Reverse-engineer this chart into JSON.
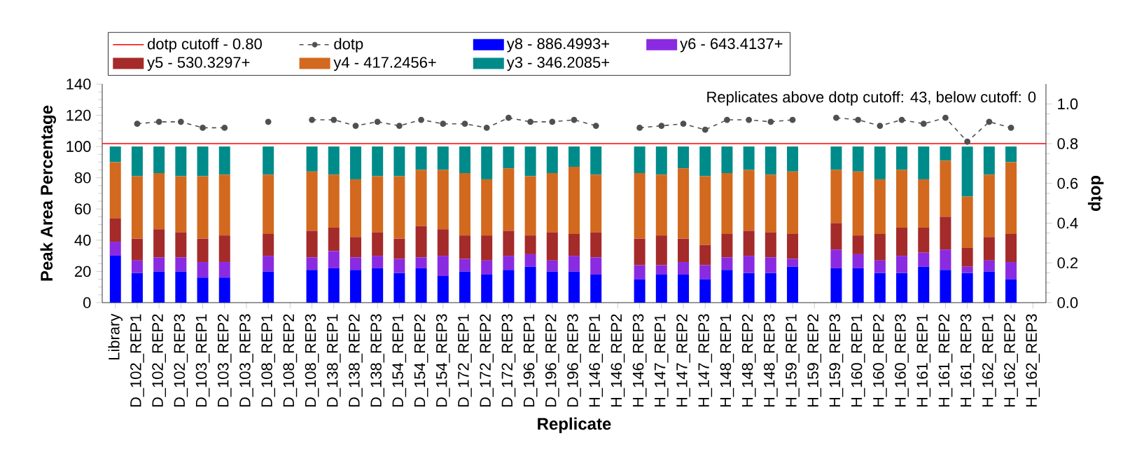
{
  "chart_data": {
    "type": "bar",
    "stacked": true,
    "categories": [
      "Library",
      "D_102_REP1",
      "D_102_REP2",
      "D_102_REP3",
      "D_103_REP1",
      "D_103_REP2",
      "D_103_REP3",
      "D_108_REP1",
      "D_108_REP2",
      "D_108_REP3",
      "D_138_REP1",
      "D_138_REP2",
      "D_138_REP3",
      "D_154_REP1",
      "D_154_REP2",
      "D_154_REP3",
      "D_172_REP1",
      "D_172_REP2",
      "D_172_REP3",
      "D_196_REP1",
      "D_196_REP2",
      "D_196_REP3",
      "H_146_REP1",
      "H_146_REP2",
      "H_146_REP3",
      "H_147_REP1",
      "H_147_REP2",
      "H_147_REP3",
      "H_148_REP1",
      "H_148_REP2",
      "H_148_REP3",
      "H_159_REP1",
      "H_159_REP2",
      "H_159_REP3",
      "H_160_REP1",
      "H_160_REP2",
      "H_160_REP3",
      "H_161_REP1",
      "H_161_REP2",
      "H_161_REP3",
      "H_162_REP1",
      "H_162_REP2",
      "H_162_REP3"
    ],
    "xlabel": "Replicate",
    "ylabel": "Peak Area Percentage",
    "y2label": "dotp",
    "ylim": [
      0,
      140
    ],
    "yticks": [
      0,
      20,
      40,
      60,
      80,
      100,
      120,
      140
    ],
    "y2lim": [
      0,
      1.1
    ],
    "y2ticks": [
      {
        "value": 0,
        "label": "0.0"
      },
      {
        "value": 0.2,
        "label": "0.2"
      },
      {
        "value": 0.4,
        "label": "0.4"
      },
      {
        "value": 0.6,
        "label": "0.6"
      },
      {
        "value": 0.8,
        "label": "0.8"
      },
      {
        "value": 1.0,
        "label": "1.0"
      }
    ],
    "series": [
      {
        "name": "y8 - 886.4993+",
        "color": "#0000ff",
        "values": [
          30,
          19,
          20,
          20,
          16,
          16,
          null,
          20,
          null,
          21,
          22,
          21,
          22,
          19,
          22,
          17,
          20,
          18,
          21,
          23,
          20,
          20,
          18,
          null,
          15,
          18,
          18,
          15,
          21,
          19,
          19,
          23,
          null,
          22,
          22,
          19,
          19,
          23,
          21,
          19,
          20,
          15,
          null
        ]
      },
      {
        "name": "y6 - 643.4137+",
        "color": "#8a2be2",
        "values": [
          9,
          8,
          9,
          9,
          10,
          10,
          null,
          10,
          null,
          8,
          11,
          8,
          8,
          9,
          7,
          13,
          8,
          9,
          9,
          8,
          7,
          10,
          11,
          null,
          9,
          6,
          8,
          9,
          8,
          11,
          10,
          5,
          null,
          12,
          9,
          8,
          11,
          9,
          13,
          4,
          7,
          11,
          null
        ]
      },
      {
        "name": "y5 - 530.3297+",
        "color": "#a52a2a",
        "values": [
          15,
          14,
          18,
          16,
          15,
          17,
          null,
          14,
          null,
          17,
          15,
          13,
          15,
          13,
          20,
          17,
          15,
          16,
          16,
          12,
          18,
          14,
          16,
          null,
          17,
          19,
          15,
          13,
          15,
          16,
          16,
          16,
          null,
          17,
          12,
          17,
          18,
          16,
          21,
          12,
          15,
          18,
          null
        ]
      },
      {
        "name": "y4 - 417.2456+",
        "color": "#d2691e",
        "values": [
          36,
          40,
          36,
          36,
          40,
          39,
          null,
          38,
          null,
          38,
          34,
          37,
          36,
          40,
          36,
          38,
          40,
          36,
          40,
          38,
          38,
          43,
          37,
          null,
          42,
          39,
          45,
          44,
          39,
          39,
          37,
          40,
          null,
          34,
          41,
          35,
          37,
          31,
          36,
          33,
          40,
          46,
          null
        ]
      },
      {
        "name": "y3 - 346.2085+",
        "color": "#008b8b",
        "values": [
          10,
          19,
          17,
          19,
          19,
          18,
          null,
          18,
          null,
          16,
          18,
          21,
          19,
          19,
          15,
          15,
          17,
          21,
          14,
          19,
          17,
          13,
          18,
          null,
          17,
          18,
          14,
          19,
          17,
          15,
          18,
          16,
          null,
          15,
          16,
          21,
          15,
          21,
          9,
          32,
          18,
          10,
          null
        ]
      },
      {
        "name": "dotp",
        "type": "line",
        "axis": "y2",
        "color": "#505050",
        "line_style": "dashed",
        "marker": "circle",
        "values": [
          null,
          0.9,
          0.91,
          0.91,
          0.88,
          0.88,
          null,
          0.91,
          null,
          0.92,
          0.92,
          0.89,
          0.91,
          0.89,
          0.92,
          0.9,
          0.9,
          0.88,
          0.93,
          0.91,
          0.91,
          0.92,
          0.89,
          null,
          0.88,
          0.89,
          0.9,
          0.87,
          0.92,
          0.92,
          0.91,
          0.92,
          null,
          0.93,
          0.92,
          0.89,
          0.92,
          0.9,
          0.93,
          0.81,
          0.91,
          0.88,
          null
        ]
      }
    ],
    "ref_lines": [
      {
        "axis": "y2",
        "value": 0.8,
        "label": "dotp cutoff - 0.80",
        "color": "#ff0000"
      }
    ],
    "annotations": [
      "Replicates above dotp cutoff: 43, below cutoff: 0"
    ],
    "legend": "top"
  }
}
